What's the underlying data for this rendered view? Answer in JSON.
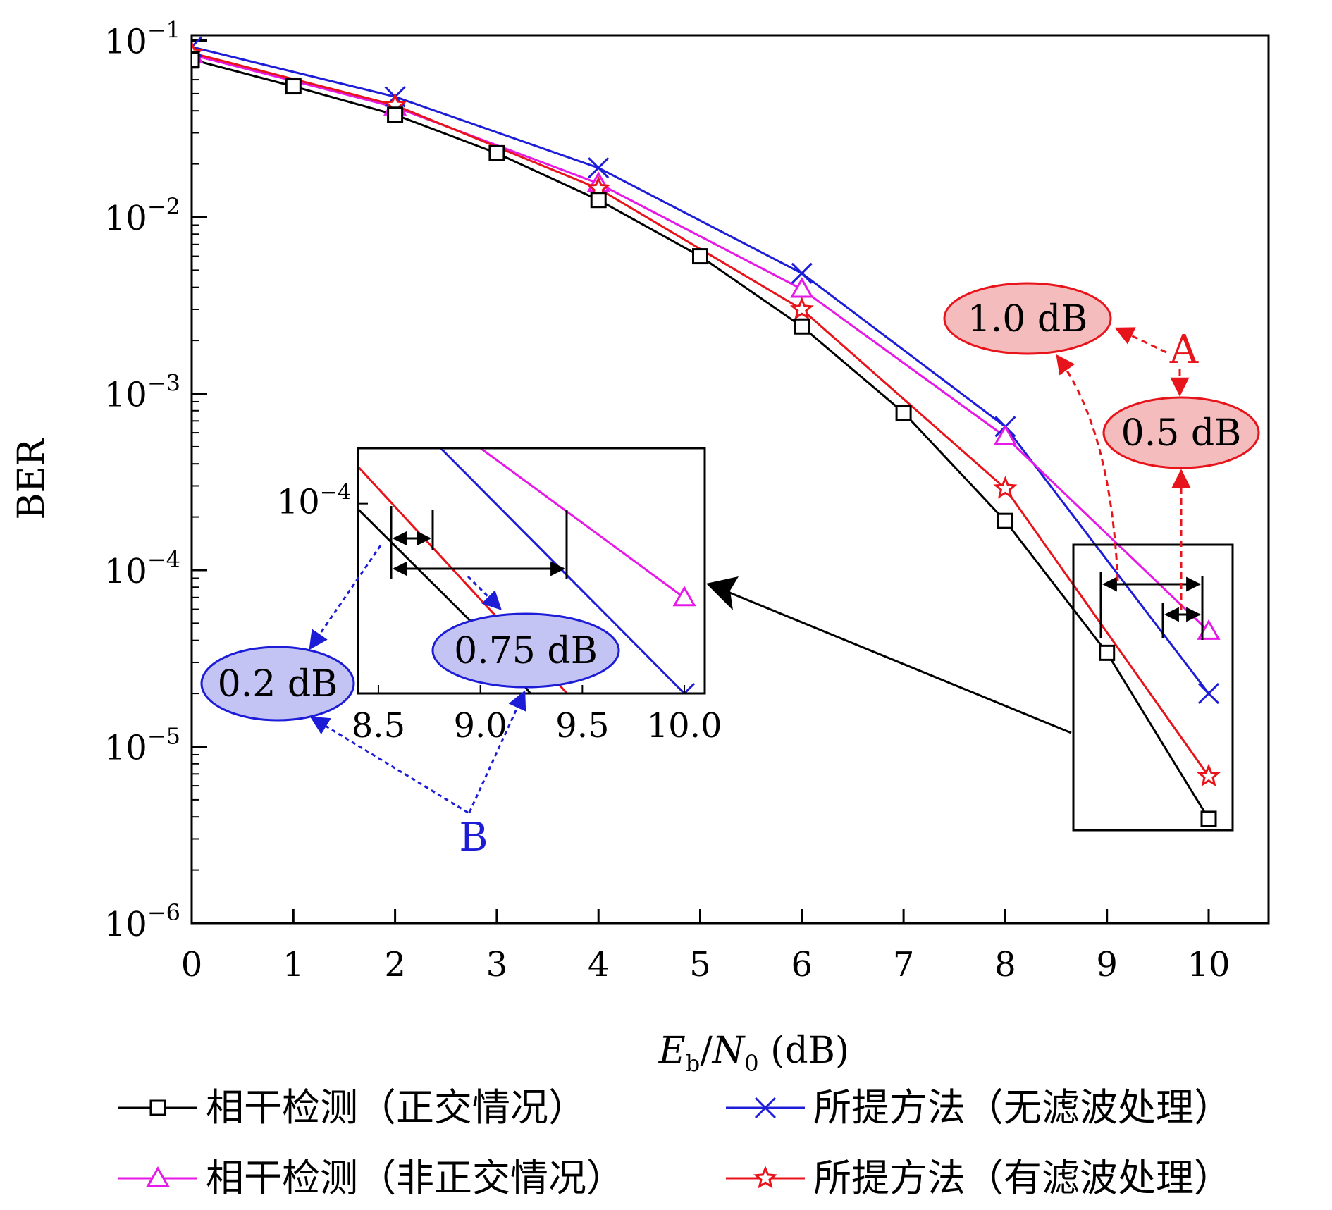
{
  "chart_data": {
    "type": "line",
    "xlabel": "E_b/N_0 (dB)",
    "ylabel": "BER",
    "y_scale": "log",
    "xlim": [
      0,
      10.5
    ],
    "ylim": [
      1e-06,
      0.1
    ],
    "x_ticks": [
      "0",
      "1",
      "2",
      "3",
      "4",
      "5",
      "6",
      "7",
      "8",
      "9",
      "10"
    ],
    "y_ticks": [
      {
        "base": "10",
        "exp": "−1"
      },
      {
        "base": "10",
        "exp": "−2"
      },
      {
        "base": "10",
        "exp": "−3"
      },
      {
        "base": "10",
        "exp": "−4"
      },
      {
        "base": "10",
        "exp": "−5"
      },
      {
        "base": "10",
        "exp": "−6"
      }
    ],
    "series": [
      {
        "name": "相干检测（正交情况）",
        "color": "#000000",
        "marker": "square",
        "x": [
          0,
          1,
          2,
          3,
          4,
          5,
          6,
          7,
          8,
          9,
          10
        ],
        "y": [
          0.078,
          0.055,
          0.038,
          0.023,
          0.0125,
          0.006,
          0.0024,
          0.00078,
          0.00019,
          3.4e-05,
          3.9e-06
        ]
      },
      {
        "name": "所提方法（无滤波处理）",
        "color": "#1d1dd8",
        "marker": "x",
        "x": [
          0,
          2,
          4,
          6,
          8,
          10
        ],
        "y": [
          0.092,
          0.048,
          0.019,
          0.0048,
          0.00065,
          2e-05
        ]
      },
      {
        "name": "相干检测（非正交情况）",
        "color": "#e619e6",
        "marker": "triangle",
        "x": [
          0,
          2,
          4,
          6,
          8,
          10
        ],
        "y": [
          0.083,
          0.042,
          0.0155,
          0.0039,
          0.00057,
          4.5e-05
        ]
      },
      {
        "name": "所提方法（有滤波处理）",
        "color": "#e8141b",
        "marker": "star",
        "x": [
          0,
          2,
          4,
          6,
          8,
          10
        ],
        "y": [
          0.085,
          0.043,
          0.0145,
          0.003,
          0.00029,
          6.8e-06
        ]
      }
    ],
    "inset": {
      "xlim": [
        8.4,
        10.1
      ],
      "ylim": [
        2e-05,
        0.00016
      ],
      "x_ticks": [
        "8.5",
        "9.0",
        "9.5",
        "10.0"
      ],
      "y_tick": {
        "base": "10",
        "exp": "−4"
      }
    },
    "annotations": {
      "A_letter": "A",
      "A_callout_1": "1.0 dB",
      "A_callout_2": "0.5 dB",
      "B_letter": "B",
      "B_callout_1": "0.2 dB",
      "B_callout_2": "0.75 dB"
    },
    "legend_position": "bottom",
    "grid": false
  },
  "colors": {
    "black": "#000000",
    "blue": "#1d1dd8",
    "magenta": "#e619e6",
    "red": "#e8141b",
    "red_fill": "#f4bcbc",
    "blue_fill": "#c4c4f4"
  }
}
